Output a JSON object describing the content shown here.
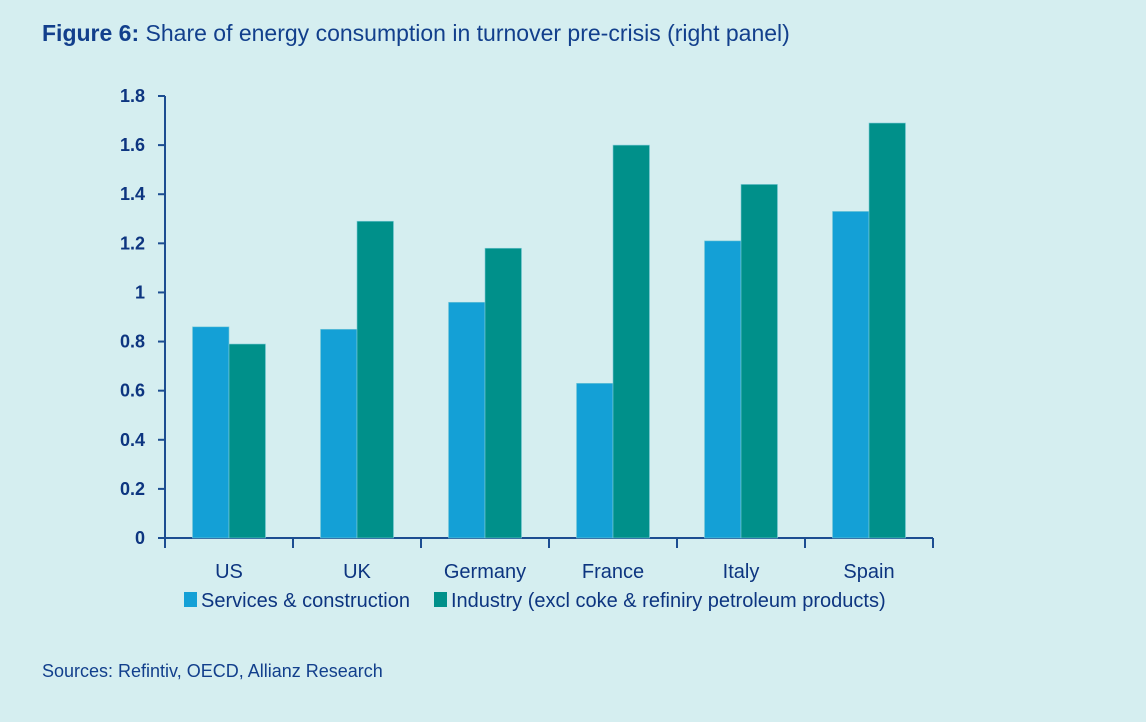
{
  "title": {
    "bold": "Figure 6:",
    "text": " Share of energy consumption in turnover pre-crisis (right panel)"
  },
  "source": "Sources: Refintiv, OECD, Allianz Research",
  "chart_data": {
    "type": "bar",
    "title": "Figure 6: Share of energy consumption in turnover pre-crisis (right panel)",
    "xlabel": "",
    "ylabel": "",
    "ylim": [
      0,
      1.8
    ],
    "yticks": [
      0,
      0.2,
      0.4,
      0.6,
      0.8,
      1,
      1.2,
      1.4,
      1.6,
      1.8
    ],
    "ytick_labels": [
      "0",
      "0.2",
      "0.4",
      "0.6",
      "0.8",
      "1",
      "1.2",
      "1.4",
      "1.6",
      "1.8"
    ],
    "categories": [
      "US",
      "UK",
      "Germany",
      "France",
      "Italy",
      "Spain"
    ],
    "series": [
      {
        "name": "Services & construction",
        "color": "#14a0d6",
        "values": [
          0.86,
          0.85,
          0.96,
          0.63,
          1.21,
          1.33
        ]
      },
      {
        "name": "Industry (excl coke & refiniry petroleum products)",
        "color": "#00908a",
        "values": [
          0.79,
          1.29,
          1.18,
          1.6,
          1.44,
          1.69
        ]
      }
    ],
    "grid": false,
    "legend": "bottom"
  }
}
